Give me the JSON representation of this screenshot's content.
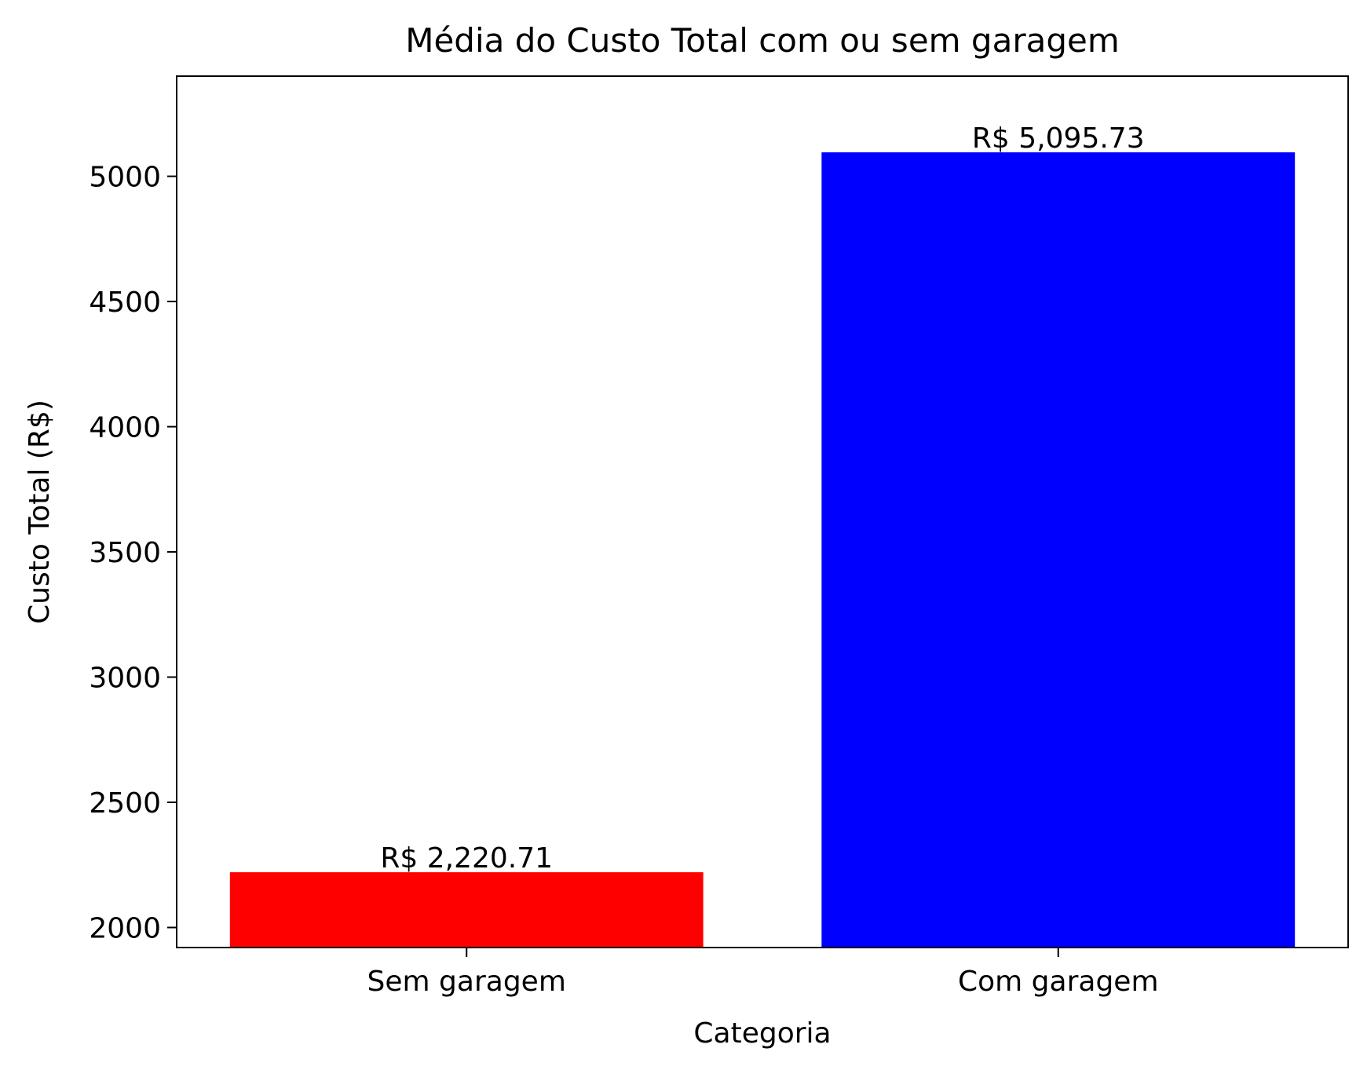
{
  "chart_data": {
    "type": "bar",
    "title": "Média do Custo Total com ou sem garagem",
    "xlabel": "Categoria",
    "ylabel": "Custo Total (R$)",
    "categories": [
      "Sem garagem",
      "Com garagem"
    ],
    "values": [
      2220.71,
      5095.73
    ],
    "value_labels": [
      "R$ 2,220.71",
      "R$ 5,095.73"
    ],
    "colors": [
      "#ff0000",
      "#0000ff"
    ],
    "ylim": [
      1920,
      5400
    ],
    "yticks": [
      2000,
      2500,
      3000,
      3500,
      4000,
      4500,
      5000
    ],
    "grid": false,
    "legend": "none"
  }
}
